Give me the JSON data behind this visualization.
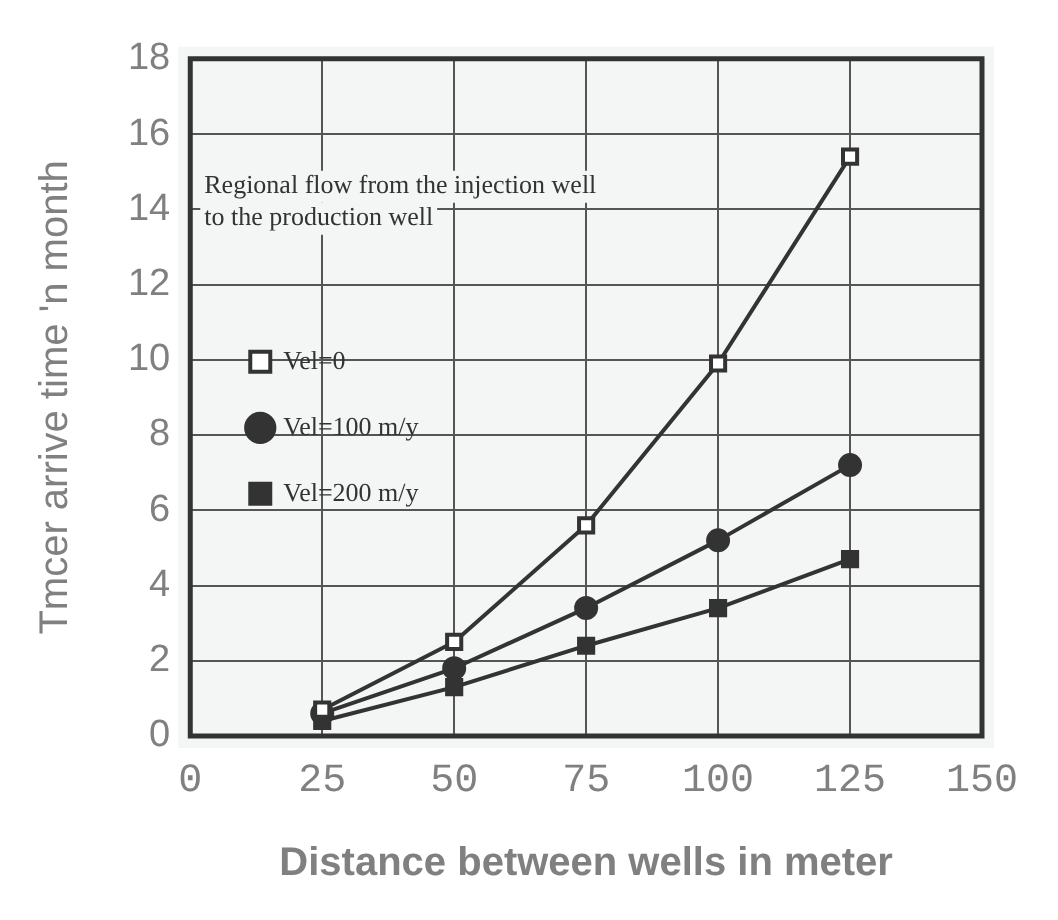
{
  "chart_data": {
    "type": "line",
    "xlabel": "Distance between wells in meter",
    "ylabel": "Tmcer arrive time 'n month",
    "x": [
      25,
      50,
      75,
      100,
      125
    ],
    "series": [
      {
        "name": "Vel=0",
        "color": "#333333",
        "marker": "square",
        "values": [
          0.7,
          2.5,
          5.6,
          9.9,
          15.4
        ]
      },
      {
        "name": "Vel=100 m/y",
        "color": "#333333",
        "marker": "circle",
        "values": [
          0.6,
          1.8,
          3.4,
          5.2,
          7.2
        ]
      },
      {
        "name": "Vel=200 m/y",
        "color": "#333333",
        "marker": "rect",
        "values": [
          0.4,
          1.3,
          2.4,
          3.4,
          4.7
        ]
      }
    ],
    "xlim": [
      0,
      150
    ],
    "xticks": [
      0,
      25,
      50,
      75,
      100,
      125,
      150
    ],
    "ylim": [
      0,
      18
    ],
    "yticks": [
      0,
      2,
      4,
      6,
      8,
      10,
      12,
      14,
      16,
      18
    ],
    "grid": true,
    "legend": "left",
    "line_style": "solid",
    "annotations": [
      "Regional flow from the injection well\nto the production well"
    ]
  }
}
